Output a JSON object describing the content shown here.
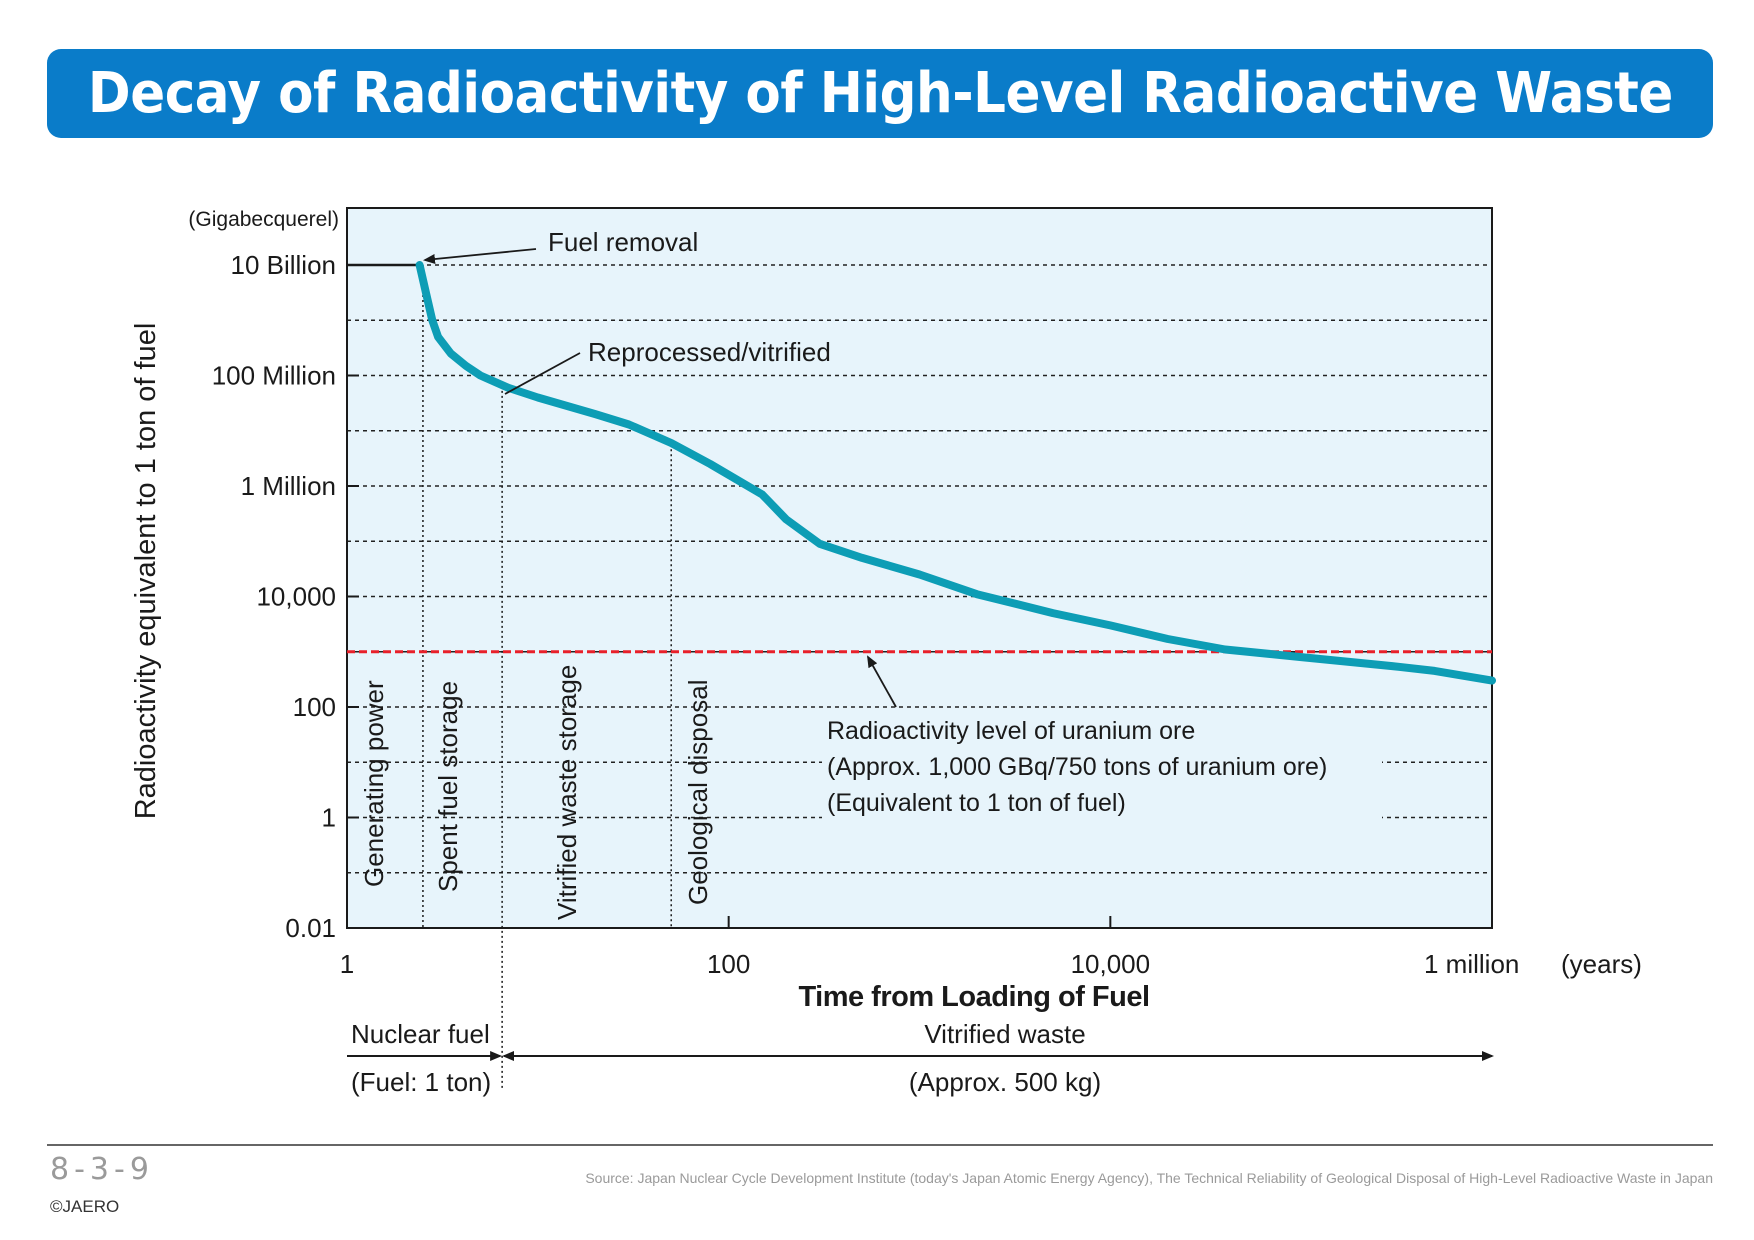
{
  "title": "Decay of Radioactivity of High-Level Radioactive Waste",
  "colors": {
    "title_bar": "#0a7cc9",
    "plot_background": "#e7f4fb",
    "curve": "#0d9db5",
    "uranium_line": "#e8202a",
    "grid": "#222222"
  },
  "chart_data": {
    "type": "line",
    "title": "Decay of Radioactivity of High-Level Radioactive Waste",
    "xlabel": "Time from Loading of Fuel",
    "x_unit": "(years)",
    "ylabel": "Radioactivity equivalent to 1 ton of fuel",
    "y_unit": "(Gigabecquerel)",
    "x_scale": "log",
    "y_scale": "log",
    "xlim": [
      1,
      1000000
    ],
    "ylim": [
      0.01,
      10000000000
    ],
    "grid": true,
    "x_ticks": [
      {
        "value": 1,
        "label": "1"
      },
      {
        "value": 100,
        "label": "100"
      },
      {
        "value": 10000,
        "label": "10,000"
      },
      {
        "value": 1000000,
        "label": "1 million"
      }
    ],
    "y_ticks": [
      {
        "value": 10000000000,
        "label": "10 Billion"
      },
      {
        "value": 100000000,
        "label": "100 Million"
      },
      {
        "value": 1000000,
        "label": "1 Million"
      },
      {
        "value": 10000,
        "label": "10,000"
      },
      {
        "value": 100,
        "label": "100"
      },
      {
        "value": 1,
        "label": "1"
      },
      {
        "value": 0.01,
        "label": "0.01"
      }
    ],
    "y_minor_gridlines": [
      1000000000,
      10000000,
      100000,
      1000,
      10,
      0.1
    ],
    "series": [
      {
        "points": [
          [
            1,
            10000000000
          ],
          [
            2.4,
            10000000000
          ],
          [
            2.6,
            3000000000
          ],
          [
            2.8,
            1000000000
          ],
          [
            3,
            500000000
          ],
          [
            3.5,
            250000000
          ],
          [
            4.2,
            150000000
          ],
          [
            5,
            100000000
          ],
          [
            7,
            60000000
          ],
          [
            10,
            40000000
          ],
          [
            20,
            20000000
          ],
          [
            30,
            13000000
          ],
          [
            50,
            6000000
          ],
          [
            80,
            2500000
          ],
          [
            150,
            700000
          ],
          [
            200,
            250000
          ],
          [
            300,
            90000
          ],
          [
            500,
            50000
          ],
          [
            1000,
            25000
          ],
          [
            2000,
            11000
          ],
          [
            5000,
            5000
          ],
          [
            10000,
            3000
          ],
          [
            20000,
            1700
          ],
          [
            40000,
            1100
          ],
          [
            100000,
            800
          ],
          [
            300000,
            550
          ],
          [
            500000,
            450
          ],
          [
            1000000,
            300
          ]
        ]
      }
    ],
    "reference_lines": [
      {
        "type": "horizontal",
        "value": 1000,
        "labels": [
          "Radioactivity level of uranium ore",
          "(Approx. 1,000 GBq/750 tons of uranium ore)",
          "(Equivalent to 1 ton of fuel)"
        ]
      }
    ],
    "phase_boundaries": [
      2.5,
      6.5,
      50
    ],
    "phases": [
      {
        "label": "Generating power",
        "x_from": 1,
        "x_to": 2.5
      },
      {
        "label": "Spent fuel storage",
        "x_from": 2.5,
        "x_to": 6.5
      },
      {
        "label": "Vitrified waste storage",
        "x_from": 6.5,
        "x_to": 50
      },
      {
        "label": "Geological disposal",
        "x_from": 50,
        "x_to": 1000000
      }
    ],
    "annotations": [
      {
        "text": "Fuel removal",
        "x": 2.5,
        "y": 10000000000
      },
      {
        "text": "Reprocessed/vitrified",
        "x": 7,
        "y": 60000000
      }
    ],
    "below_axis": {
      "nuclear_fuel": {
        "label": "Nuclear fuel",
        "sub": "(Fuel: 1 ton)",
        "x_to": 6.5
      },
      "vitrified_waste": {
        "label": "Vitrified waste",
        "sub": "(Approx. 500 kg)",
        "x_from": 6.5,
        "x_to": 1000000
      }
    }
  },
  "footer": {
    "page_number": "8-3-9",
    "copyright": "©JAERO",
    "source": "Source: Japan Nuclear Cycle Development Institute (today's Japan Atomic Energy Agency), The Technical Reliability of Geological Disposal of High-Level Radioactive Waste in Japan"
  }
}
